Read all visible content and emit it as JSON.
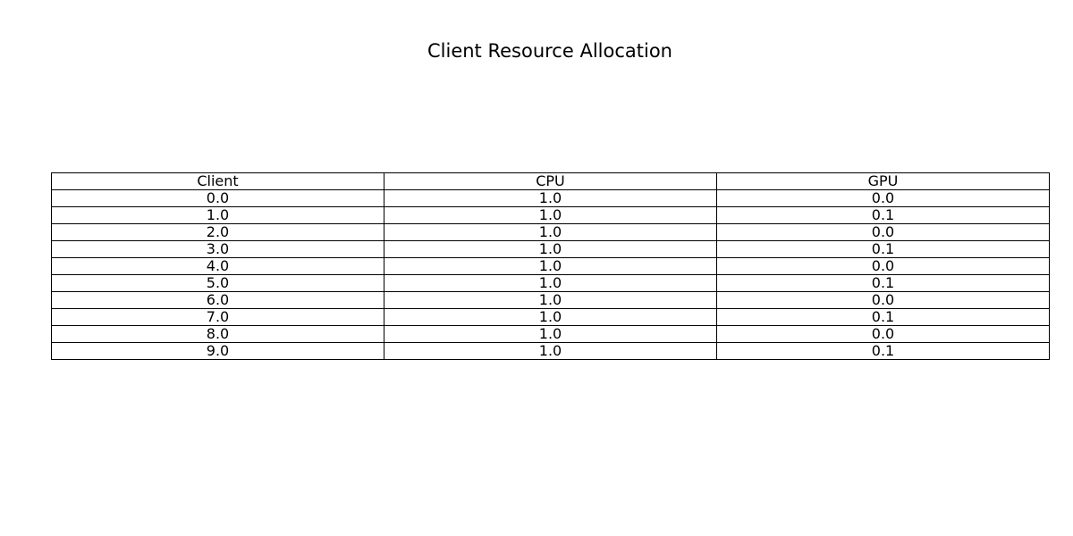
{
  "chart_data": {
    "type": "table",
    "title": "Client Resource Allocation",
    "columns": [
      "Client",
      "CPU",
      "GPU"
    ],
    "rows": [
      [
        "0.0",
        "1.0",
        "0.0"
      ],
      [
        "1.0",
        "1.0",
        "0.1"
      ],
      [
        "2.0",
        "1.0",
        "0.0"
      ],
      [
        "3.0",
        "1.0",
        "0.1"
      ],
      [
        "4.0",
        "1.0",
        "0.0"
      ],
      [
        "5.0",
        "1.0",
        "0.1"
      ],
      [
        "6.0",
        "1.0",
        "0.0"
      ],
      [
        "7.0",
        "1.0",
        "0.1"
      ],
      [
        "8.0",
        "1.0",
        "0.0"
      ],
      [
        "9.0",
        "1.0",
        "0.1"
      ]
    ]
  }
}
